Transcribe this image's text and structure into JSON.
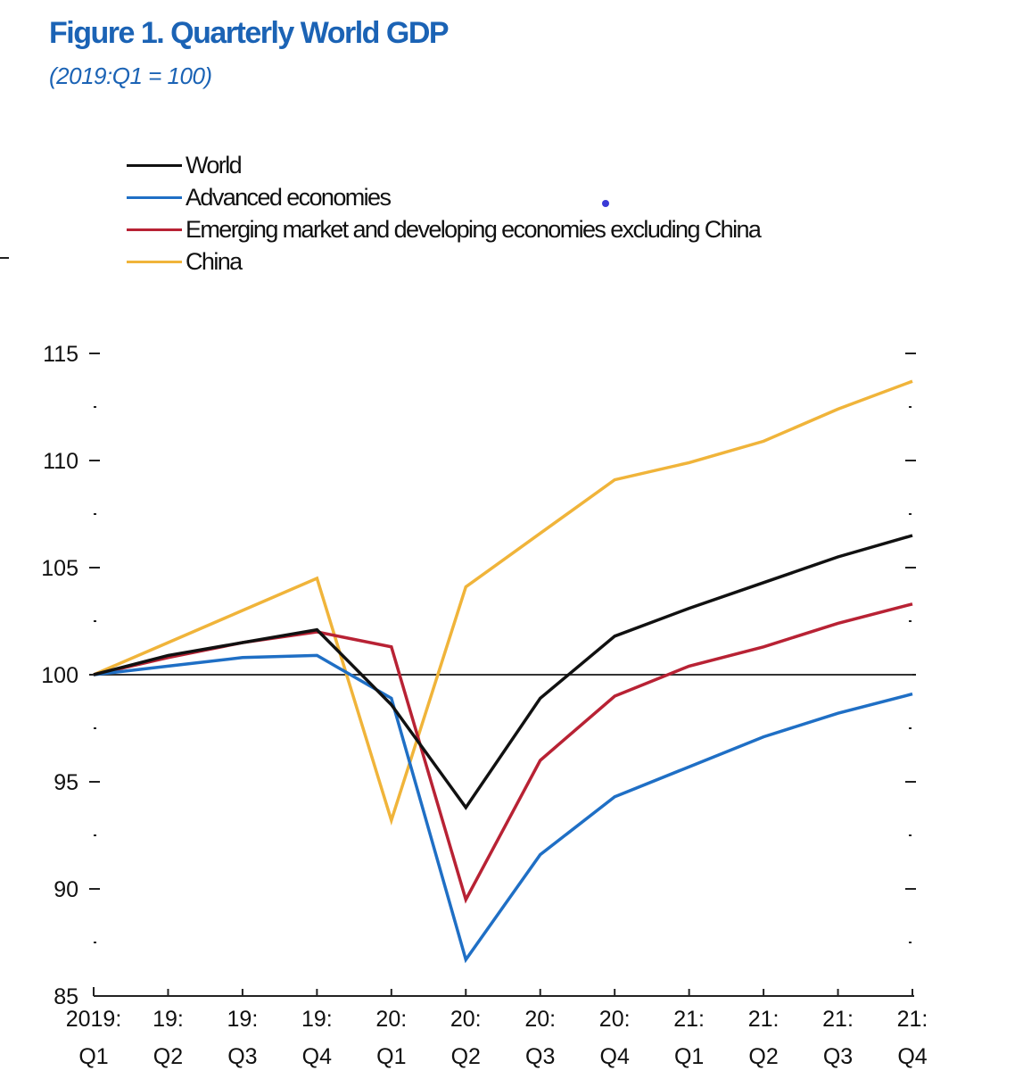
{
  "title": "Figure 1. Quarterly World GDP",
  "subtitle": "(2019:Q1 = 100)",
  "chart_data": {
    "type": "line",
    "categories": [
      [
        "2019:",
        "Q1"
      ],
      [
        "19:",
        "Q2"
      ],
      [
        "19:",
        "Q3"
      ],
      [
        "19:",
        "Q4"
      ],
      [
        "20:",
        "Q1"
      ],
      [
        "20:",
        "Q2"
      ],
      [
        "20:",
        "Q3"
      ],
      [
        "20:",
        "Q4"
      ],
      [
        "21:",
        "Q1"
      ],
      [
        "21:",
        "Q2"
      ],
      [
        "21:",
        "Q3"
      ],
      [
        "21:",
        "Q4"
      ]
    ],
    "ylim": [
      85,
      115
    ],
    "yticks": [
      85,
      90,
      95,
      100,
      105,
      110,
      115
    ],
    "reference_line": 100,
    "series": [
      {
        "name": "World",
        "color": "#111111",
        "values": [
          100,
          100.9,
          101.5,
          102.1,
          98.6,
          93.8,
          98.9,
          101.8,
          103.1,
          104.3,
          105.5,
          106.5
        ]
      },
      {
        "name": "Advanced economies",
        "color": "#1f6fc5",
        "values": [
          100,
          100.4,
          100.8,
          100.9,
          98.9,
          86.7,
          91.6,
          94.3,
          95.7,
          97.1,
          98.2,
          99.1
        ]
      },
      {
        "name": "Emerging market and developing economies excluding China",
        "color": "#b82234",
        "values": [
          100,
          100.8,
          101.5,
          102.0,
          101.3,
          89.5,
          96.0,
          99.0,
          100.4,
          101.3,
          102.4,
          103.3
        ]
      },
      {
        "name": "China",
        "color": "#f0b43a",
        "values": [
          100,
          101.5,
          103.0,
          104.5,
          93.2,
          104.1,
          106.6,
          109.1,
          109.9,
          110.9,
          112.4,
          113.7
        ]
      }
    ],
    "legend_position": "top-left"
  }
}
